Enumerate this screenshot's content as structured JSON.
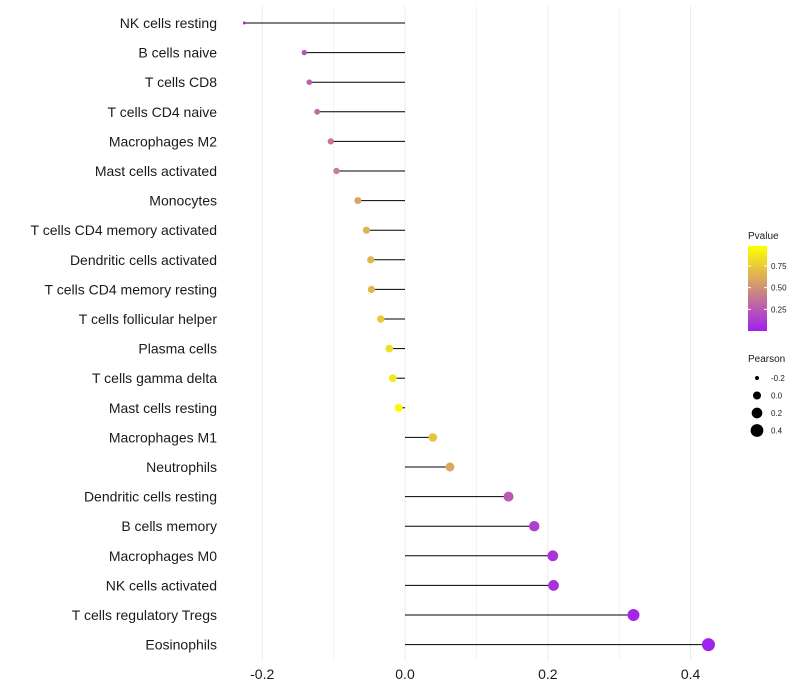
{
  "chart_data": {
    "type": "lollipop",
    "title": "",
    "xlabel": "",
    "ylabel": "",
    "xlim": [
      -0.25,
      0.44
    ],
    "xticks": [
      -0.2,
      0.0,
      0.2,
      0.4
    ],
    "xtick_labels": [
      "-0.2",
      "0.0",
      "0.2",
      "0.4"
    ],
    "grid": true,
    "points": [
      {
        "category": "NK cells resting",
        "pearson": -0.225,
        "pvalue": 0.03
      },
      {
        "category": "B cells naive",
        "pearson": -0.141,
        "pvalue": 0.24
      },
      {
        "category": "T cells CD8",
        "pearson": -0.134,
        "pvalue": 0.28
      },
      {
        "category": "T cells CD4 naive",
        "pearson": -0.123,
        "pvalue": 0.32
      },
      {
        "category": "Macrophages M2",
        "pearson": -0.104,
        "pvalue": 0.38
      },
      {
        "category": "Mast cells activated",
        "pearson": -0.096,
        "pvalue": 0.42
      },
      {
        "category": "Monocytes",
        "pearson": -0.066,
        "pvalue": 0.58
      },
      {
        "category": "T cells CD4 memory activated",
        "pearson": -0.054,
        "pvalue": 0.64
      },
      {
        "category": "Dendritic cells activated",
        "pearson": -0.048,
        "pvalue": 0.66
      },
      {
        "category": "T cells CD4 memory resting",
        "pearson": -0.047,
        "pvalue": 0.66
      },
      {
        "category": "T cells follicular helper",
        "pearson": -0.034,
        "pvalue": 0.74
      },
      {
        "category": "Plasma cells",
        "pearson": -0.022,
        "pvalue": 0.84
      },
      {
        "category": "T cells gamma delta",
        "pearson": -0.017,
        "pvalue": 0.88
      },
      {
        "category": "Mast cells resting",
        "pearson": -0.009,
        "pvalue": 0.95
      },
      {
        "category": "Macrophages M1",
        "pearson": 0.039,
        "pvalue": 0.72
      },
      {
        "category": "Neutrophils",
        "pearson": 0.063,
        "pvalue": 0.6
      },
      {
        "category": "Dendritic cells resting",
        "pearson": 0.145,
        "pvalue": 0.25
      },
      {
        "category": "B cells memory",
        "pearson": 0.181,
        "pvalue": 0.14
      },
      {
        "category": "Macrophages M0",
        "pearson": 0.207,
        "pvalue": 0.08
      },
      {
        "category": "NK cells activated",
        "pearson": 0.208,
        "pvalue": 0.08
      },
      {
        "category": "T cells regulatory  Tregs",
        "pearson": 0.32,
        "pvalue": 0.03
      },
      {
        "category": "Eosinophils",
        "pearson": 0.425,
        "pvalue": 0.01
      }
    ],
    "color_legend": {
      "title": "Pvalue",
      "ticks": [
        0.25,
        0.5,
        0.75
      ],
      "tick_labels": [
        "0.25",
        "0.50",
        "0.75"
      ],
      "range": [
        0.0,
        0.98
      ],
      "gradient_colors": [
        "#a020f0",
        "#ffff00"
      ]
    },
    "size_legend": {
      "title": "Pearson",
      "values": [
        -0.2,
        0.0,
        0.2,
        0.4
      ],
      "labels": [
        "-0.2",
        "0.0",
        "0.2",
        "0.4"
      ]
    },
    "colors": {
      "stem": "#000000",
      "grid": "#ebebeb",
      "low": "#a020f0",
      "high": "#ffff00"
    }
  }
}
